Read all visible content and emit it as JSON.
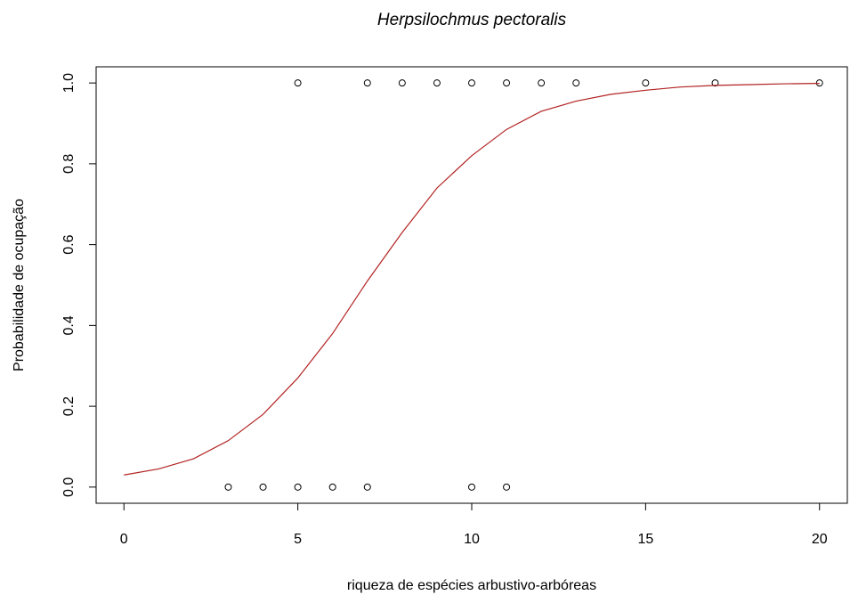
{
  "chart_data": {
    "type": "scatter",
    "title": "Herpsilochmus pectoralis",
    "xlabel": "riqueza de espécies arbustivo-arbóreas",
    "ylabel": "Probabilidade de ocupação",
    "xlim": [
      -0.8,
      20.8
    ],
    "ylim": [
      -0.04,
      1.04
    ],
    "xticks": [
      0,
      5,
      10,
      15,
      20
    ],
    "yticks": [
      {
        "value": 0,
        "label": "0.0"
      },
      {
        "value": 0.2,
        "label": "0.2"
      },
      {
        "value": 0.4,
        "label": "0.4"
      },
      {
        "value": 0.6,
        "label": "0.6"
      },
      {
        "value": 0.8,
        "label": "0.8"
      },
      {
        "value": 1,
        "label": "1.0"
      }
    ],
    "series": [
      {
        "type": "scatter",
        "color": "#000000",
        "x": [
          5,
          7,
          8,
          9,
          10,
          11,
          12,
          13,
          15,
          17,
          20,
          3,
          4,
          5,
          6,
          7,
          10,
          11
        ],
        "values": [
          1,
          1,
          1,
          1,
          1,
          1,
          1,
          1,
          1,
          1,
          1,
          0,
          0,
          0,
          0,
          0,
          0,
          0
        ]
      },
      {
        "type": "line",
        "color": "#b22222",
        "x": [
          0,
          1,
          2,
          3,
          4,
          5,
          6,
          7,
          8,
          9,
          10,
          11,
          12,
          13,
          14,
          15,
          16,
          17,
          18,
          19,
          20
        ],
        "values": [
          0.03,
          0.045,
          0.07,
          0.115,
          0.18,
          0.27,
          0.38,
          0.51,
          0.63,
          0.74,
          0.82,
          0.885,
          0.93,
          0.955,
          0.972,
          0.982,
          0.99,
          0.994,
          0.996,
          0.998,
          0.999
        ]
      }
    ]
  }
}
